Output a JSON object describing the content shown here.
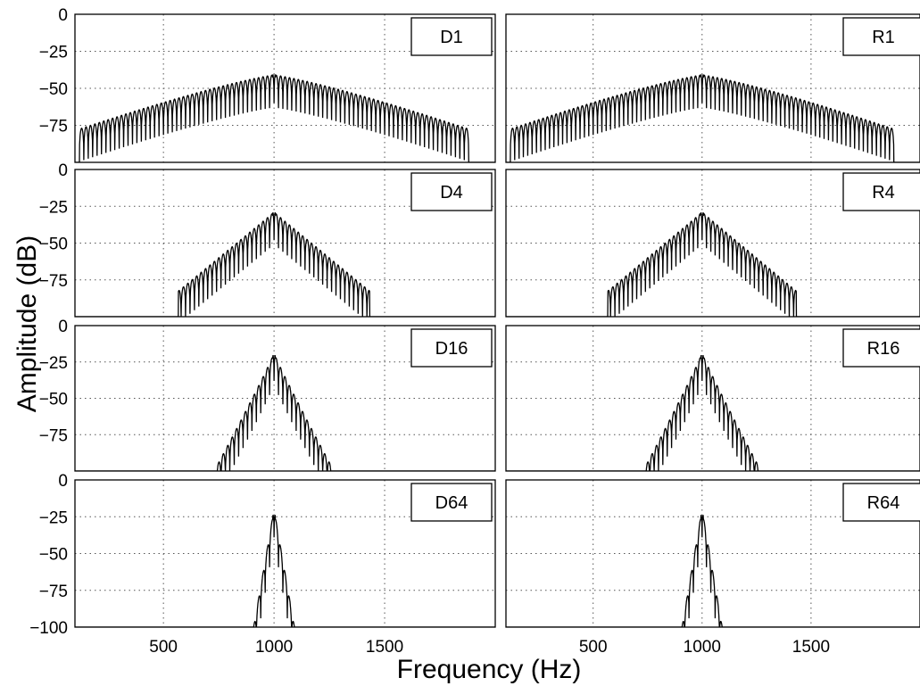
{
  "chart_data": {
    "type": "line",
    "xlabel": "Frequency (Hz)",
    "ylabel": "Amplitude (dB)",
    "xlim": [
      100,
      2000
    ],
    "ylim": [
      -100,
      0
    ],
    "xticks": [
      500,
      1000,
      1500
    ],
    "yticks": [
      0,
      -25,
      -50,
      -75,
      -100
    ],
    "grid": true,
    "legend_placement": "top-right",
    "panels": [
      {
        "label": "D1",
        "peak_hz": 1000,
        "peak_db": -38,
        "floor_db": -75,
        "decay": "wide",
        "lobe_spacing_hz": 20
      },
      {
        "label": "R1",
        "peak_hz": 1000,
        "peak_db": -38,
        "floor_db": -75,
        "decay": "wide",
        "lobe_spacing_hz": 20
      },
      {
        "label": "D4",
        "peak_hz": 1000,
        "peak_db": -26,
        "floor_db": -80,
        "decay": "medium",
        "lobe_spacing_hz": 20
      },
      {
        "label": "R4",
        "peak_hz": 1000,
        "peak_db": -26,
        "floor_db": -80,
        "decay": "medium",
        "lobe_spacing_hz": 20
      },
      {
        "label": "D16",
        "peak_hz": 1000,
        "peak_db": -16,
        "floor_db": -95,
        "decay": "narrow",
        "lobe_spacing_hz": 20
      },
      {
        "label": "R16",
        "peak_hz": 1000,
        "peak_db": -16,
        "floor_db": -95,
        "decay": "narrow",
        "lobe_spacing_hz": 20
      },
      {
        "label": "D64",
        "peak_hz": 1000,
        "peak_db": -17,
        "floor_db": -100,
        "decay": "sharp",
        "lobe_spacing_hz": 20
      },
      {
        "label": "R64",
        "peak_hz": 1000,
        "peak_db": -17,
        "floor_db": -100,
        "decay": "sharp",
        "lobe_spacing_hz": 20
      }
    ]
  }
}
